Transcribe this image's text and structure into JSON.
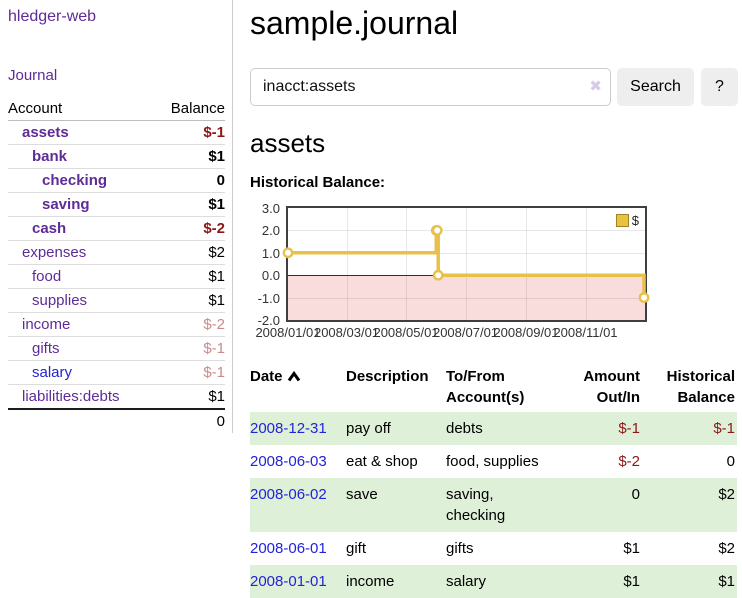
{
  "app": {
    "brand": "hledger-web"
  },
  "sidebar": {
    "journal_link": "Journal",
    "accounts": {
      "headers": {
        "account": "Account",
        "balance": "Balance"
      },
      "rows": [
        {
          "name": "assets",
          "balance": "$-1"
        },
        {
          "name": "bank",
          "balance": "$1"
        },
        {
          "name": "checking",
          "balance": "0"
        },
        {
          "name": "saving",
          "balance": "$1"
        },
        {
          "name": "cash",
          "balance": "$-2"
        },
        {
          "name": "expenses",
          "balance": "$2"
        },
        {
          "name": "food",
          "balance": "$1"
        },
        {
          "name": "supplies",
          "balance": "$1"
        },
        {
          "name": "income",
          "balance": "$-2"
        },
        {
          "name": "gifts",
          "balance": "$-1"
        },
        {
          "name": "salary",
          "balance": "$-1"
        },
        {
          "name": "liabilities:debts",
          "balance": "$1"
        }
      ],
      "total": "0"
    }
  },
  "main": {
    "title": "sample.journal",
    "search": {
      "value": "inacct:assets",
      "clear_glyph": "✖",
      "button_label": "Search",
      "help_label": "?"
    },
    "account_heading": "assets",
    "balance_label": "Historical Balance:"
  },
  "chart_data": {
    "type": "line",
    "step": true,
    "title": "Historical Balance:",
    "legend_position": "top-right",
    "ylim": [
      -2,
      3
    ],
    "x_range_days": [
      0,
      366
    ],
    "y_ticks": [
      "3.0",
      "2.0",
      "1.0",
      "0.0",
      "-1.0",
      "-2.0"
    ],
    "x_ticks": [
      {
        "label": "2008/01/01",
        "day": 0
      },
      {
        "label": "2008/03/01",
        "day": 60
      },
      {
        "label": "2008/05/01",
        "day": 121
      },
      {
        "label": "2008/07/01",
        "day": 182
      },
      {
        "label": "2008/09/01",
        "day": 244
      },
      {
        "label": "2008/11/01",
        "day": 305
      }
    ],
    "series": [
      {
        "name": "$",
        "points": [
          {
            "date": "2008-01-01",
            "day": 0,
            "y": 1
          },
          {
            "date": "2008-06-01",
            "day": 152,
            "y": 2
          },
          {
            "date": "2008-06-02",
            "day": 153,
            "y": 2
          },
          {
            "date": "2008-06-03",
            "day": 154,
            "y": 0
          },
          {
            "date": "2008-12-31",
            "day": 365,
            "y": -1
          }
        ]
      }
    ],
    "negative_region_shaded": true
  },
  "register": {
    "headers": {
      "date": "Date",
      "description": "Description",
      "account": "To/From Account(s)",
      "amount": "Amount Out/In",
      "balance": "Historical Balance"
    },
    "rows": [
      {
        "date": "2008-12-31",
        "description": "pay off",
        "accounts": "debts",
        "amount": "$-1",
        "balance": "$-1"
      },
      {
        "date": "2008-06-03",
        "description": "eat & shop",
        "accounts": "food, supplies",
        "amount": "$-2",
        "balance": "0"
      },
      {
        "date": "2008-06-02",
        "description": "save",
        "accounts": "saving, checking",
        "amount": "0",
        "balance": "$2"
      },
      {
        "date": "2008-06-01",
        "description": "gift",
        "accounts": "gifts",
        "amount": "$1",
        "balance": "$2"
      },
      {
        "date": "2008-01-01",
        "description": "income",
        "accounts": "salary",
        "amount": "$1",
        "balance": "$1"
      }
    ]
  },
  "colors": {
    "link_purple": "#5e2b97",
    "link_blue": "#2323d8",
    "negative_strong": "#8b1717",
    "negative_pale": "#c98b8b",
    "row_green": "#dff0d8",
    "chart_line_gold": "#e9c049",
    "chart_marker_fill": "#ffffff",
    "chart_negative_fill": "#f9dcdc",
    "chart_zero_line": "#a00000",
    "chart_border": "#3f3f3f",
    "legend_swatch": "#e8c240",
    "button_bg": "#eeeeee",
    "clear_icon": "#d5cbe8"
  }
}
